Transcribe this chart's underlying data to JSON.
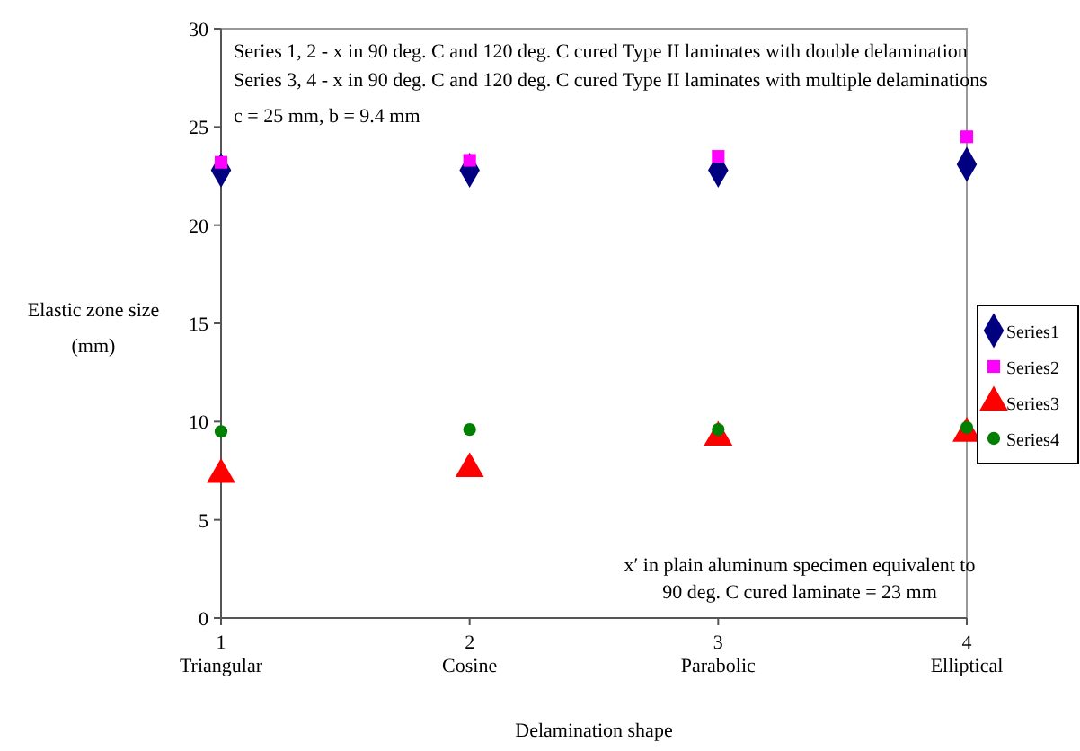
{
  "chart_data": {
    "type": "scatter",
    "xlabel": "Delamination shape",
    "ylabel": "Elastic zone size\n(mm)",
    "xlim": [
      1,
      4
    ],
    "ylim": [
      0,
      30
    ],
    "yticks": [
      0,
      5,
      10,
      15,
      20,
      25,
      30
    ],
    "xticks": [
      {
        "value": 1,
        "label": "1\nTriangular"
      },
      {
        "value": 2,
        "label": "2\nCosine"
      },
      {
        "value": 3,
        "label": "3\nParabolic"
      },
      {
        "value": 4,
        "label": "4\nElliptical"
      }
    ],
    "x": [
      1,
      2,
      3,
      4
    ],
    "series": [
      {
        "name": "Series1",
        "color": "#000080",
        "marker": "diamond",
        "values": [
          22.8,
          22.8,
          22.8,
          23.1
        ]
      },
      {
        "name": "Series2",
        "color": "#ff00ff",
        "marker": "square",
        "values": [
          23.2,
          23.3,
          23.5,
          24.5
        ]
      },
      {
        "name": "Series3",
        "color": "#ff0000",
        "marker": "triangle",
        "values": [
          7.3,
          7.6,
          9.2,
          9.4
        ]
      },
      {
        "name": "Series4",
        "color": "#008000",
        "marker": "circle",
        "values": [
          9.5,
          9.6,
          9.6,
          9.7
        ]
      }
    ],
    "annotations": [
      "Series 1, 2 - x in 90 deg. C and 120 deg. C cured Type II laminates with double delamination",
      "Series 3, 4 - x in 90 deg. C and 120 deg. C cured Type II laminates with multiple delaminations",
      "c = 25 mm, b = 9.4 mm",
      "x′ in plain aluminum specimen equivalent to\n90 deg. C cured laminate = 23 mm"
    ],
    "legend": "right",
    "grid": false
  }
}
